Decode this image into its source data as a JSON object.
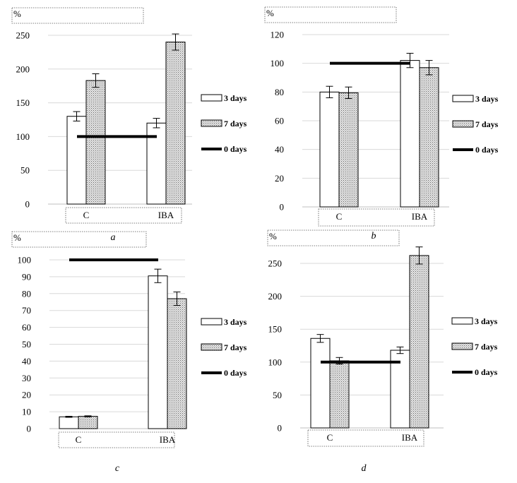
{
  "colors": {
    "bar_3days": "#ffffff",
    "bar_7days": "#d6d6d6",
    "line_0days": "#000000",
    "grid": "#d9d9d9"
  },
  "chart_data": [
    {
      "panel": "a",
      "type": "bar",
      "unit_label": "%",
      "panel_label": "a",
      "categories": [
        "C",
        "IBA"
      ],
      "ylim": [
        0,
        250
      ],
      "yticks": [
        0,
        50,
        100,
        150,
        200,
        250
      ],
      "grid": true,
      "legend_position": "right",
      "series": [
        {
          "name": "3 days",
          "values": [
            130,
            120
          ],
          "errors": [
            7,
            7
          ]
        },
        {
          "name": "7 days",
          "values": [
            183,
            240
          ],
          "errors": [
            10,
            12
          ]
        }
      ],
      "reference_line": {
        "name": "0 days",
        "value": 100
      }
    },
    {
      "panel": "b",
      "type": "bar",
      "unit_label": "%",
      "panel_label": "b",
      "categories": [
        "C",
        "IBA"
      ],
      "ylim": [
        0,
        120
      ],
      "yticks": [
        0,
        20,
        40,
        60,
        80,
        100,
        120
      ],
      "grid": true,
      "legend_position": "right",
      "series": [
        {
          "name": "3 days",
          "values": [
            80,
            102
          ],
          "errors": [
            4,
            5
          ]
        },
        {
          "name": "7 days",
          "values": [
            79.5,
            97
          ],
          "errors": [
            4,
            5
          ]
        }
      ],
      "reference_line": {
        "name": "0 days",
        "value": 100
      }
    },
    {
      "panel": "c",
      "type": "bar",
      "unit_label": "%",
      "panel_label": "c",
      "categories": [
        "C",
        "IBA"
      ],
      "ylim": [
        0,
        100
      ],
      "yticks": [
        0,
        10,
        20,
        30,
        40,
        50,
        60,
        70,
        80,
        90,
        100
      ],
      "grid": true,
      "legend_position": "right",
      "series": [
        {
          "name": "3 days",
          "values": [
            7,
            90.5
          ],
          "errors": [
            0.3,
            4
          ]
        },
        {
          "name": "7 days",
          "values": [
            7.3,
            77
          ],
          "errors": [
            0.3,
            4
          ]
        }
      ],
      "reference_line": {
        "name": "0 days",
        "value": 100
      }
    },
    {
      "panel": "d",
      "type": "bar",
      "unit_label": "%",
      "panel_label": "d",
      "categories": [
        "C",
        "IBA"
      ],
      "ylim": [
        0,
        250
      ],
      "yticks": [
        0,
        50,
        100,
        150,
        200,
        250
      ],
      "grid": true,
      "legend_position": "right",
      "series": [
        {
          "name": "3 days",
          "values": [
            136,
            118
          ],
          "errors": [
            6,
            5
          ]
        },
        {
          "name": "7 days",
          "values": [
            102,
            262
          ],
          "errors": [
            5,
            13
          ]
        }
      ],
      "reference_line": {
        "name": "0 days",
        "value": 100
      }
    }
  ]
}
